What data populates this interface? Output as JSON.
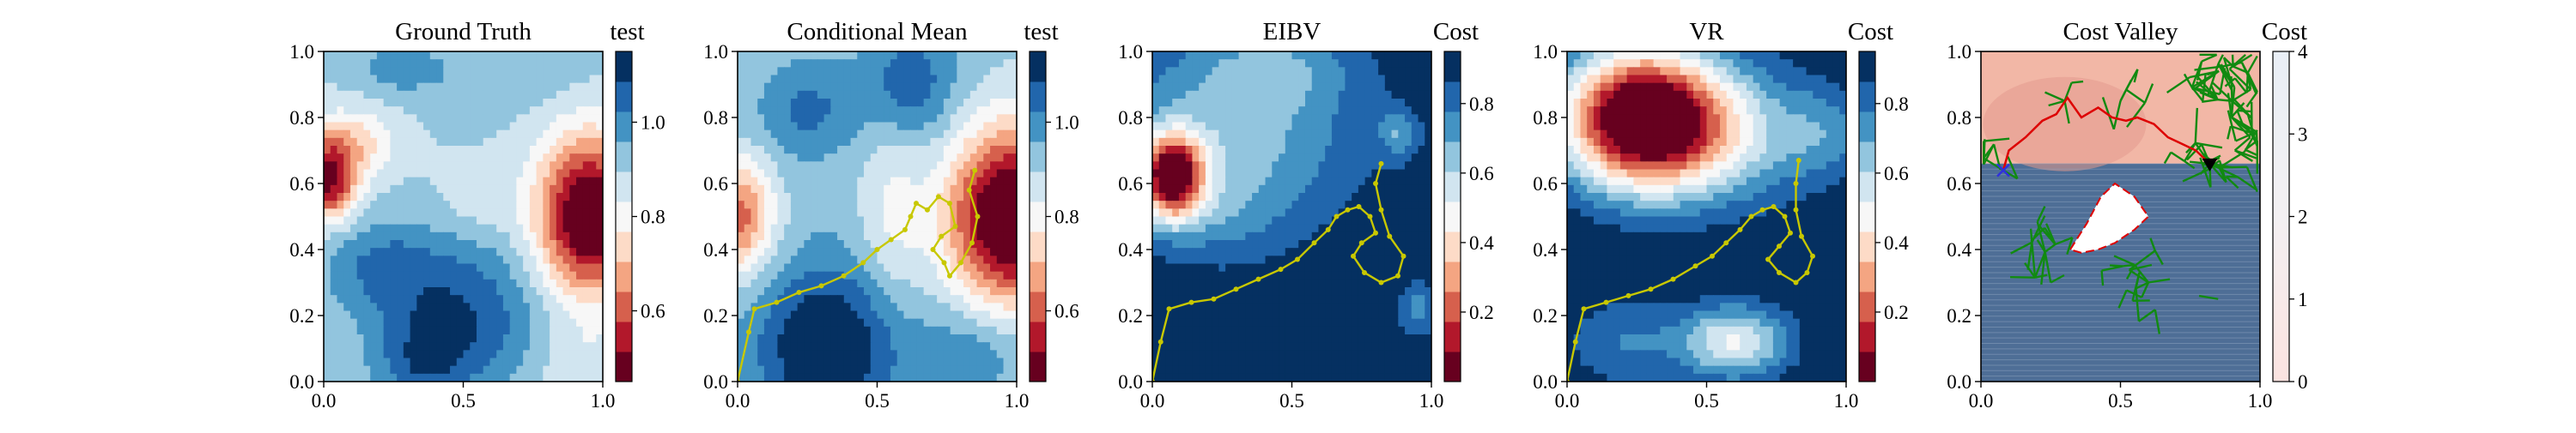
{
  "colors": {
    "rdbu": [
      "#67001f",
      "#b2182b",
      "#d6604d",
      "#f4a582",
      "#fddbc7",
      "#f7f7f7",
      "#d1e5f0",
      "#92c5de",
      "#4393c3",
      "#2166ac",
      "#053061"
    ],
    "path": "#c8c800",
    "tree": "#118a11",
    "route": "#dd0000",
    "boundary": "#dd0000",
    "start_marker": "#3030dd",
    "goal_marker": "#000000",
    "valley_fill": "#f2b7a6",
    "valley_low": "#4e6e96"
  },
  "chart_data": [
    {
      "type": "heatmap",
      "title": "Ground Truth",
      "colorbar_label": "test",
      "xlim": [
        0,
        1
      ],
      "ylim": [
        0,
        1
      ],
      "x_ticks": [
        "0.0",
        "0.5",
        "1.0"
      ],
      "y_ticks": [
        "0.0",
        "0.2",
        "0.4",
        "0.6",
        "0.8",
        "1.0"
      ],
      "colorbar_ticks": [
        "0.6",
        "0.8",
        "1.0"
      ],
      "colorbar_range": [
        0.45,
        1.15
      ],
      "field": {
        "base": 0.9,
        "terms": [
          {
            "cx": 0.95,
            "cy": 0.5,
            "sx": 0.13,
            "sy": 0.17,
            "amp": -0.5
          },
          {
            "cx": 0.02,
            "cy": 0.6,
            "sx": 0.07,
            "sy": 0.08,
            "amp": -0.38
          },
          {
            "cx": 0.08,
            "cy": 0.72,
            "sx": 0.12,
            "sy": 0.07,
            "amp": -0.18
          },
          {
            "cx": 0.5,
            "cy": 0.2,
            "sx": 0.2,
            "sy": 0.16,
            "amp": 0.18
          },
          {
            "cx": 0.35,
            "cy": 0.05,
            "sx": 0.12,
            "sy": 0.1,
            "amp": 0.12
          },
          {
            "cx": 0.2,
            "cy": 0.35,
            "sx": 0.15,
            "sy": 0.1,
            "amp": 0.12
          },
          {
            "cx": 0.65,
            "cy": 0.93,
            "sx": 0.22,
            "sy": 0.08,
            "amp": 0.05
          },
          {
            "cx": 0.28,
            "cy": 0.95,
            "sx": 0.1,
            "sy": 0.05,
            "amp": 0.1
          },
          {
            "cx": 0.92,
            "cy": 0.05,
            "sx": 0.12,
            "sy": 0.08,
            "amp": -0.06
          },
          {
            "cx": 0.55,
            "cy": 0.55,
            "sx": 0.1,
            "sy": 0.08,
            "amp": -0.05
          }
        ]
      }
    },
    {
      "type": "heatmap",
      "title": "Conditional Mean",
      "colorbar_label": "test",
      "xlim": [
        0,
        1
      ],
      "ylim": [
        0,
        1
      ],
      "x_ticks": [
        "0.0",
        "0.5",
        "1.0"
      ],
      "y_ticks": [
        "0.0",
        "0.2",
        "0.4",
        "0.6",
        "0.8",
        "1.0"
      ],
      "colorbar_ticks": [
        "0.6",
        "0.8",
        "1.0"
      ],
      "colorbar_range": [
        0.45,
        1.15
      ],
      "field": {
        "base": 0.92,
        "terms": [
          {
            "cx": 0.98,
            "cy": 0.5,
            "sx": 0.16,
            "sy": 0.19,
            "amp": -0.55
          },
          {
            "cx": 0.0,
            "cy": 0.5,
            "sx": 0.09,
            "sy": 0.12,
            "amp": -0.32
          },
          {
            "cx": 0.32,
            "cy": 0.1,
            "sx": 0.18,
            "sy": 0.18,
            "amp": 0.26
          },
          {
            "cx": 0.62,
            "cy": 0.9,
            "sx": 0.12,
            "sy": 0.12,
            "amp": 0.15
          },
          {
            "cx": 0.25,
            "cy": 0.82,
            "sx": 0.12,
            "sy": 0.1,
            "amp": 0.12
          },
          {
            "cx": 0.85,
            "cy": 0.1,
            "sx": 0.14,
            "sy": 0.1,
            "amp": 0.1
          },
          {
            "cx": 0.55,
            "cy": 0.5,
            "sx": 0.08,
            "sy": 0.2,
            "amp": -0.1
          }
        ]
      },
      "path": [
        [
          0.0,
          0.0
        ],
        [
          0.04,
          0.15
        ],
        [
          0.06,
          0.22
        ],
        [
          0.14,
          0.24
        ],
        [
          0.22,
          0.27
        ],
        [
          0.3,
          0.29
        ],
        [
          0.38,
          0.32
        ],
        [
          0.45,
          0.36
        ],
        [
          0.5,
          0.4
        ],
        [
          0.55,
          0.43
        ],
        [
          0.6,
          0.46
        ],
        [
          0.62,
          0.5
        ],
        [
          0.64,
          0.54
        ],
        [
          0.68,
          0.52
        ],
        [
          0.72,
          0.56
        ],
        [
          0.76,
          0.54
        ],
        [
          0.78,
          0.47
        ],
        [
          0.73,
          0.44
        ],
        [
          0.7,
          0.4
        ],
        [
          0.74,
          0.36
        ],
        [
          0.76,
          0.32
        ],
        [
          0.8,
          0.36
        ],
        [
          0.84,
          0.42
        ],
        [
          0.86,
          0.5
        ],
        [
          0.83,
          0.58
        ],
        [
          0.85,
          0.64
        ]
      ]
    },
    {
      "type": "heatmap",
      "title": "EIBV",
      "colorbar_label": "Cost",
      "xlim": [
        0,
        1
      ],
      "ylim": [
        0,
        1
      ],
      "x_ticks": [
        "0.0",
        "0.5",
        "1.0"
      ],
      "y_ticks": [
        "0.0",
        "0.2",
        "0.4",
        "0.6",
        "0.8",
        "1.0"
      ],
      "colorbar_ticks": [
        "0.2",
        "0.4",
        "0.6",
        "0.8"
      ],
      "colorbar_range": [
        0.0,
        0.95
      ],
      "field": {
        "base": 0.93,
        "terms": [
          {
            "cx": 0.07,
            "cy": 0.62,
            "sx": 0.08,
            "sy": 0.09,
            "amp": -0.9
          },
          {
            "cx": 0.3,
            "cy": 0.75,
            "sx": 0.3,
            "sy": 0.2,
            "amp": -0.28
          },
          {
            "cx": 0.45,
            "cy": 0.95,
            "sx": 0.2,
            "sy": 0.08,
            "amp": -0.15
          },
          {
            "cx": 0.88,
            "cy": 0.75,
            "sx": 0.05,
            "sy": 0.05,
            "amp": -0.2
          },
          {
            "cx": 0.95,
            "cy": 0.22,
            "sx": 0.05,
            "sy": 0.06,
            "amp": -0.18
          },
          {
            "cx": 0.25,
            "cy": 0.5,
            "sx": 0.15,
            "sy": 0.1,
            "amp": -0.1
          }
        ]
      },
      "path": [
        [
          0.0,
          0.0
        ],
        [
          0.03,
          0.12
        ],
        [
          0.06,
          0.22
        ],
        [
          0.14,
          0.24
        ],
        [
          0.22,
          0.25
        ],
        [
          0.3,
          0.28
        ],
        [
          0.38,
          0.31
        ],
        [
          0.46,
          0.34
        ],
        [
          0.52,
          0.37
        ],
        [
          0.58,
          0.42
        ],
        [
          0.63,
          0.46
        ],
        [
          0.66,
          0.5
        ],
        [
          0.7,
          0.52
        ],
        [
          0.74,
          0.53
        ],
        [
          0.78,
          0.5
        ],
        [
          0.8,
          0.45
        ],
        [
          0.75,
          0.42
        ],
        [
          0.72,
          0.38
        ],
        [
          0.76,
          0.33
        ],
        [
          0.82,
          0.3
        ],
        [
          0.88,
          0.32
        ],
        [
          0.9,
          0.38
        ],
        [
          0.85,
          0.44
        ],
        [
          0.82,
          0.52
        ],
        [
          0.8,
          0.6
        ],
        [
          0.82,
          0.66
        ]
      ]
    },
    {
      "type": "heatmap",
      "title": "VR",
      "colorbar_label": "Cost",
      "xlim": [
        0,
        1
      ],
      "ylim": [
        0,
        1
      ],
      "x_ticks": [
        "0.0",
        "0.5",
        "1.0"
      ],
      "y_ticks": [
        "0.0",
        "0.2",
        "0.4",
        "0.6",
        "0.8",
        "1.0"
      ],
      "colorbar_ticks": [
        "0.2",
        "0.4",
        "0.6",
        "0.8"
      ],
      "colorbar_range": [
        0.0,
        0.95
      ],
      "field": {
        "base": 0.96,
        "terms": [
          {
            "cx": 0.26,
            "cy": 0.8,
            "sx": 0.2,
            "sy": 0.15,
            "amp": -1.0
          },
          {
            "cx": 0.55,
            "cy": 0.75,
            "sx": 0.25,
            "sy": 0.15,
            "amp": -0.35
          },
          {
            "cx": 0.6,
            "cy": 0.12,
            "sx": 0.14,
            "sy": 0.08,
            "amp": -0.45
          },
          {
            "cx": 0.2,
            "cy": 0.12,
            "sx": 0.15,
            "sy": 0.1,
            "amp": -0.18
          },
          {
            "cx": 0.93,
            "cy": 0.75,
            "sx": 0.1,
            "sy": 0.1,
            "amp": -0.15
          }
        ]
      },
      "path": [
        [
          0.0,
          0.0
        ],
        [
          0.03,
          0.12
        ],
        [
          0.06,
          0.22
        ],
        [
          0.14,
          0.24
        ],
        [
          0.22,
          0.26
        ],
        [
          0.3,
          0.28
        ],
        [
          0.38,
          0.31
        ],
        [
          0.46,
          0.35
        ],
        [
          0.52,
          0.38
        ],
        [
          0.57,
          0.42
        ],
        [
          0.62,
          0.46
        ],
        [
          0.66,
          0.5
        ],
        [
          0.7,
          0.52
        ],
        [
          0.74,
          0.53
        ],
        [
          0.78,
          0.5
        ],
        [
          0.8,
          0.45
        ],
        [
          0.76,
          0.41
        ],
        [
          0.72,
          0.37
        ],
        [
          0.76,
          0.33
        ],
        [
          0.82,
          0.3
        ],
        [
          0.86,
          0.33
        ],
        [
          0.88,
          0.38
        ],
        [
          0.84,
          0.44
        ],
        [
          0.82,
          0.52
        ],
        [
          0.82,
          0.6
        ],
        [
          0.83,
          0.67
        ]
      ]
    },
    {
      "type": "heatmap",
      "title": "Cost Valley",
      "colorbar_label": "Cost",
      "xlim": [
        0,
        1
      ],
      "ylim": [
        0,
        1
      ],
      "x_ticks": [
        "0.0",
        "0.5",
        "1.0"
      ],
      "y_ticks": [
        "0.0",
        "0.2",
        "0.4",
        "0.6",
        "0.8",
        "1.0"
      ],
      "colorbar_ticks": [
        "0",
        "1",
        "2",
        "3",
        "4"
      ],
      "colorbar_range": [
        0,
        4
      ],
      "valley_boundary_y": 0.66,
      "obstacle_polygon": [
        [
          0.32,
          0.4
        ],
        [
          0.38,
          0.48
        ],
        [
          0.43,
          0.56
        ],
        [
          0.48,
          0.6
        ],
        [
          0.55,
          0.56
        ],
        [
          0.6,
          0.5
        ],
        [
          0.55,
          0.46
        ],
        [
          0.48,
          0.42
        ],
        [
          0.42,
          0.4
        ],
        [
          0.36,
          0.39
        ]
      ],
      "route": [
        [
          0.08,
          0.64
        ],
        [
          0.1,
          0.7
        ],
        [
          0.16,
          0.74
        ],
        [
          0.22,
          0.79
        ],
        [
          0.27,
          0.81
        ],
        [
          0.31,
          0.86
        ],
        [
          0.36,
          0.8
        ],
        [
          0.42,
          0.83
        ],
        [
          0.47,
          0.8
        ],
        [
          0.52,
          0.79
        ],
        [
          0.56,
          0.8
        ],
        [
          0.62,
          0.78
        ],
        [
          0.67,
          0.74
        ],
        [
          0.72,
          0.72
        ],
        [
          0.77,
          0.7
        ],
        [
          0.82,
          0.66
        ]
      ],
      "start": [
        0.08,
        0.64
      ],
      "goal": [
        0.82,
        0.66
      ],
      "tree_segment_count": 180
    }
  ]
}
